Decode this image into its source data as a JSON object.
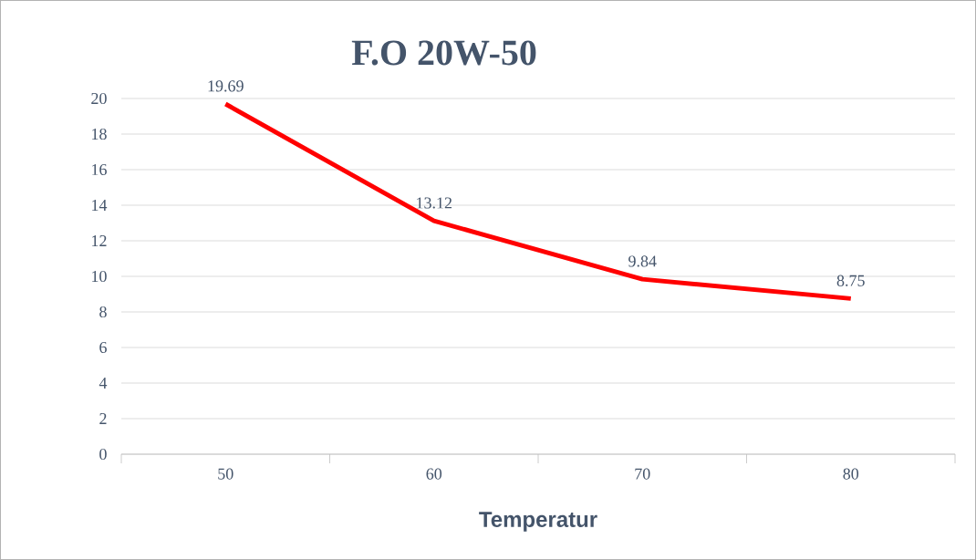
{
  "chart_data": {
    "type": "line",
    "title": "F.O 20W-50",
    "xlabel": "Temperatur",
    "categories": [
      "50",
      "60",
      "70",
      "80"
    ],
    "values": [
      19.69,
      13.12,
      9.84,
      8.75
    ],
    "color": "#ff0000",
    "ylim": [
      0,
      20
    ],
    "yticks": [
      0,
      2,
      4,
      6,
      8,
      10,
      12,
      14,
      16,
      18,
      20
    ],
    "grid": "y",
    "data_labels": true
  }
}
